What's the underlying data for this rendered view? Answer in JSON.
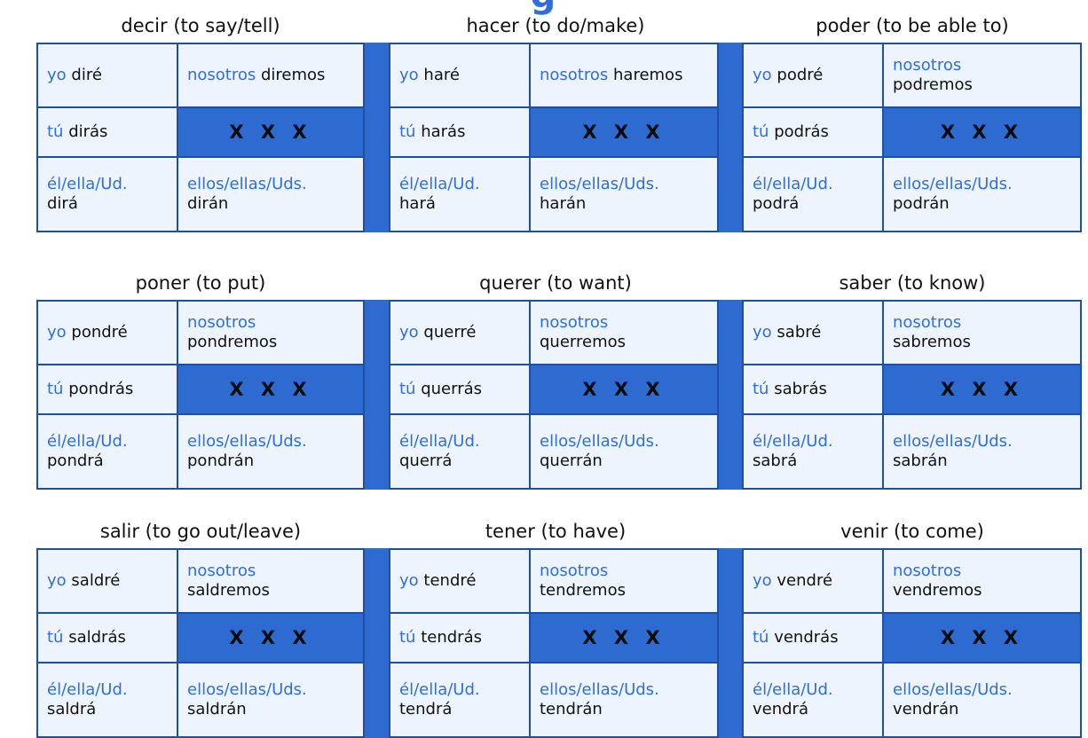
{
  "title_fragment": "g",
  "colors": {
    "accent_blue": "#2f6fd6",
    "dark_blue": "#2e6bd1",
    "light_cell": "#eef4fd"
  },
  "placeholder": "X X X",
  "pronouns": {
    "yo": "yo",
    "tu": "tú",
    "el": "él/ella/Ud.",
    "nosotros": "nosotros",
    "ellos": "ellos/ellas/Uds."
  },
  "bands": [
    {
      "verbs": [
        {
          "header": "decir (to say/tell)",
          "yo": "diré",
          "tu": "dirás",
          "el": "dirá",
          "nosotros": "diremos",
          "ellos": "dirán"
        },
        {
          "header": "hacer (to do/make)",
          "yo": "haré",
          "tu": "harás",
          "el": "hará",
          "nosotros": "haremos",
          "ellos": "harán"
        },
        {
          "header": "poder (to be able to)",
          "yo": "podré",
          "tu": "podrás",
          "el": "podrá",
          "nosotros": "podremos",
          "ellos": "podrán"
        }
      ]
    },
    {
      "verbs": [
        {
          "header": "poner (to put)",
          "yo": "pondré",
          "tu": "pondrás",
          "el": "pondrá",
          "nosotros": "pondremos",
          "ellos": "pondrán"
        },
        {
          "header": "querer (to want)",
          "yo": "querré",
          "tu": "querrás",
          "el": "querrá",
          "nosotros": "querremos",
          "ellos": "querrán"
        },
        {
          "header": "saber (to know)",
          "yo": "sabré",
          "tu": "sabrás",
          "el": "sabrá",
          "nosotros": "sabremos",
          "ellos": "sabrán"
        }
      ]
    },
    {
      "verbs": [
        {
          "header": "salir (to go out/leave)",
          "yo": "saldré",
          "tu": "saldrás",
          "el": "saldrá",
          "nosotros": "saldremos",
          "ellos": "saldrán"
        },
        {
          "header": "tener (to have)",
          "yo": "tendré",
          "tu": "tendrás",
          "el": "tendrá",
          "nosotros": "tendremos",
          "ellos": "tendrán"
        },
        {
          "header": "venir (to come)",
          "yo": "vendré",
          "tu": "vendrás",
          "el": "vendrá",
          "nosotros": "vendremos",
          "ellos": "vendrán"
        }
      ]
    }
  ]
}
